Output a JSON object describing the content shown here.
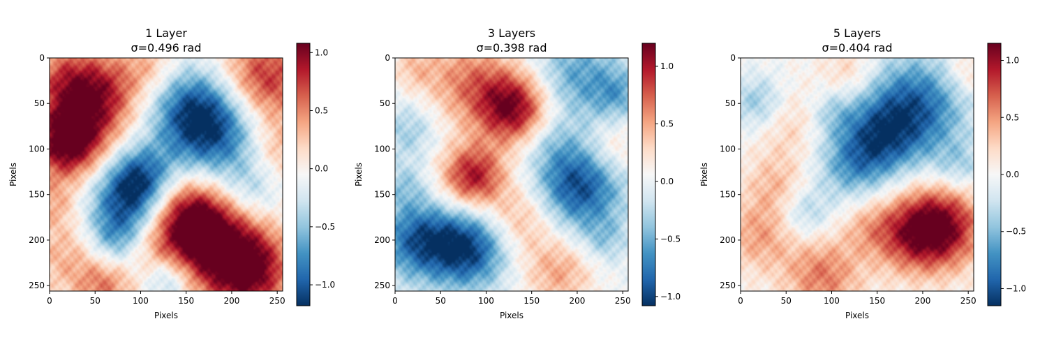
{
  "chart_data": [
    {
      "type": "heatmap",
      "title": "1 Layer",
      "subtitle": "σ=0.496 rad",
      "xlabel": "Pixels",
      "ylabel": "Pixels",
      "xlim": [
        0,
        256
      ],
      "ylim": [
        256,
        0
      ],
      "x_ticks": [
        0,
        50,
        100,
        150,
        200,
        250
      ],
      "y_ticks": [
        0,
        50,
        100,
        150,
        200,
        250
      ],
      "colormap": "RdBu_r",
      "color_low": "#053061",
      "color_mid": "#f7f7f7",
      "color_high": "#67001f",
      "clim": [
        -1.18,
        1.08
      ],
      "colorbar_ticks": [
        "1.0",
        "0.5",
        "0.0",
        "−0.5",
        "−1.0"
      ],
      "colorbar_tick_values": [
        1.0,
        0.5,
        0.0,
        -0.5,
        -1.0
      ],
      "blobs": [
        {
          "x": 20,
          "y": 95,
          "r": 28,
          "v": 1.05
        },
        {
          "x": 35,
          "y": 55,
          "r": 35,
          "v": 0.55
        },
        {
          "x": 60,
          "y": 35,
          "r": 30,
          "v": 0.55
        },
        {
          "x": 15,
          "y": 20,
          "r": 25,
          "v": 0.4
        },
        {
          "x": 110,
          "y": 10,
          "r": 20,
          "v": 0.3
        },
        {
          "x": 235,
          "y": 25,
          "r": 35,
          "v": 0.85
        },
        {
          "x": 250,
          "y": 100,
          "r": 25,
          "v": 0.4
        },
        {
          "x": 160,
          "y": 60,
          "r": 35,
          "v": -0.95
        },
        {
          "x": 190,
          "y": 90,
          "r": 40,
          "v": -0.65
        },
        {
          "x": 220,
          "y": 150,
          "r": 25,
          "v": -0.4
        },
        {
          "x": 85,
          "y": 160,
          "r": 32,
          "v": -0.9
        },
        {
          "x": 100,
          "y": 130,
          "r": 25,
          "v": -0.7
        },
        {
          "x": 70,
          "y": 200,
          "r": 22,
          "v": -0.45
        },
        {
          "x": 130,
          "y": 245,
          "r": 18,
          "v": -0.5
        },
        {
          "x": 180,
          "y": 200,
          "r": 40,
          "v": 1.0
        },
        {
          "x": 220,
          "y": 235,
          "r": 30,
          "v": 0.95
        },
        {
          "x": 150,
          "y": 175,
          "r": 30,
          "v": 0.8
        },
        {
          "x": 20,
          "y": 215,
          "r": 30,
          "v": 0.35
        },
        {
          "x": 60,
          "y": 250,
          "r": 22,
          "v": 0.5
        },
        {
          "x": 5,
          "y": 160,
          "r": 18,
          "v": 0.3
        },
        {
          "x": 110,
          "y": 205,
          "r": 20,
          "v": 0.2
        }
      ]
    },
    {
      "type": "heatmap",
      "title": "3 Layers",
      "subtitle": "σ=0.398 rad",
      "xlabel": "Pixels",
      "ylabel": "Pixels",
      "xlim": [
        0,
        256
      ],
      "ylim": [
        256,
        0
      ],
      "x_ticks": [
        0,
        50,
        100,
        150,
        200,
        250
      ],
      "y_ticks": [
        0,
        50,
        100,
        150,
        200,
        250
      ],
      "colormap": "RdBu_r",
      "color_low": "#053061",
      "color_mid": "#f7f7f7",
      "color_high": "#67001f",
      "clim": [
        -1.08,
        1.2
      ],
      "colorbar_ticks": [
        "1.0",
        "0.5",
        "0.0",
        "−0.5",
        "−1.0"
      ],
      "colorbar_tick_values": [
        1.0,
        0.5,
        0.0,
        -0.5,
        -1.0
      ],
      "blobs": [
        {
          "x": 130,
          "y": 55,
          "r": 28,
          "v": 1.1
        },
        {
          "x": 80,
          "y": 25,
          "r": 35,
          "v": 0.6
        },
        {
          "x": 85,
          "y": 130,
          "r": 25,
          "v": 1.0
        },
        {
          "x": 140,
          "y": 175,
          "r": 28,
          "v": 0.5
        },
        {
          "x": 180,
          "y": 235,
          "r": 28,
          "v": 0.5
        },
        {
          "x": 240,
          "y": 100,
          "r": 22,
          "v": 0.35
        },
        {
          "x": 20,
          "y": 10,
          "r": 18,
          "v": 0.3
        },
        {
          "x": 200,
          "y": 20,
          "r": 35,
          "v": -0.55
        },
        {
          "x": 245,
          "y": 40,
          "r": 20,
          "v": -0.4
        },
        {
          "x": 200,
          "y": 140,
          "r": 35,
          "v": -1.0
        },
        {
          "x": 80,
          "y": 210,
          "r": 30,
          "v": -1.0
        },
        {
          "x": 25,
          "y": 200,
          "r": 30,
          "v": -0.85
        },
        {
          "x": 15,
          "y": 80,
          "r": 22,
          "v": -0.35
        },
        {
          "x": 10,
          "y": 140,
          "r": 18,
          "v": -0.3
        },
        {
          "x": 230,
          "y": 200,
          "r": 18,
          "v": -0.3
        },
        {
          "x": 170,
          "y": 90,
          "r": 18,
          "v": -0.2
        }
      ]
    },
    {
      "type": "heatmap",
      "title": "5 Layers",
      "subtitle": "σ=0.404 rad",
      "xlabel": "Pixels",
      "ylabel": "Pixels",
      "xlim": [
        0,
        256
      ],
      "ylim": [
        256,
        0
      ],
      "x_ticks": [
        0,
        50,
        100,
        150,
        200,
        250
      ],
      "y_ticks": [
        0,
        50,
        100,
        150,
        200,
        250
      ],
      "colormap": "RdBu_r",
      "color_low": "#053061",
      "color_mid": "#f7f7f7",
      "color_high": "#67001f",
      "clim": [
        -1.15,
        1.15
      ],
      "colorbar_ticks": [
        "1.0",
        "0.5",
        "0.0",
        "−0.5",
        "−1.0"
      ],
      "colorbar_tick_values": [
        1.0,
        0.5,
        0.0,
        -0.5,
        -1.0
      ],
      "blobs": [
        {
          "x": 220,
          "y": 185,
          "r": 32,
          "v": 1.05
        },
        {
          "x": 185,
          "y": 195,
          "r": 30,
          "v": 0.6
        },
        {
          "x": 90,
          "y": 240,
          "r": 30,
          "v": 0.6
        },
        {
          "x": 20,
          "y": 195,
          "r": 28,
          "v": 0.45
        },
        {
          "x": 40,
          "y": 140,
          "r": 25,
          "v": 0.35
        },
        {
          "x": 50,
          "y": 70,
          "r": 28,
          "v": 0.3
        },
        {
          "x": 120,
          "y": 15,
          "r": 22,
          "v": 0.3
        },
        {
          "x": 250,
          "y": 15,
          "r": 18,
          "v": 0.3
        },
        {
          "x": 140,
          "y": 185,
          "r": 22,
          "v": 0.3
        },
        {
          "x": 190,
          "y": 55,
          "r": 40,
          "v": -0.95
        },
        {
          "x": 150,
          "y": 90,
          "r": 30,
          "v": -0.65
        },
        {
          "x": 120,
          "y": 120,
          "r": 28,
          "v": -0.5
        },
        {
          "x": 20,
          "y": 50,
          "r": 22,
          "v": -0.5
        },
        {
          "x": 70,
          "y": 170,
          "r": 20,
          "v": -0.4
        },
        {
          "x": 240,
          "y": 120,
          "r": 20,
          "v": -0.35
        },
        {
          "x": 100,
          "y": 60,
          "r": 18,
          "v": -0.3
        }
      ]
    }
  ]
}
